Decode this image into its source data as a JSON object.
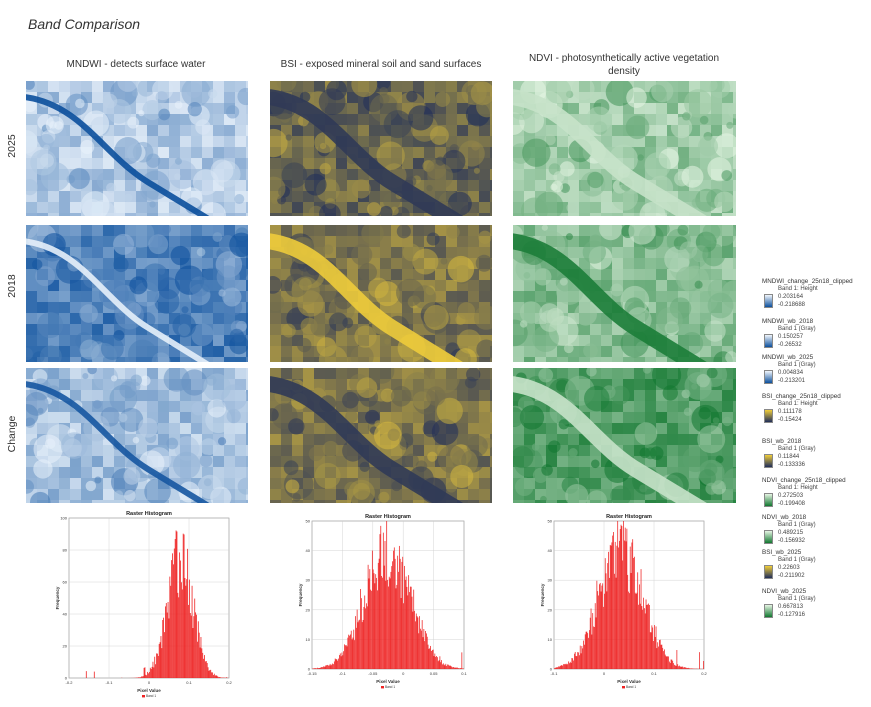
{
  "title": "Band Comparison",
  "columns": [
    {
      "label": "MNDWI - detects surface water"
    },
    {
      "label": "BSI - exposed mineral soil and sand surfaces"
    },
    {
      "label": "NDVI - photosynthetically active vegetation density"
    }
  ],
  "rows": [
    {
      "label": "2025"
    },
    {
      "label": "2018"
    },
    {
      "label": "Change"
    }
  ],
  "colors": {
    "mndwi_low": "#0b4f9c",
    "mndwi_high": "#e9f2fb",
    "bsi_low": "#1f2d5a",
    "bsi_high": "#f2cf3a",
    "ndvi_low": "#11772f",
    "ndvi_high": "#e6f5e4",
    "hist_series": "#ee2222"
  },
  "histograms": [
    {
      "title": "Raster Histogram",
      "xlabel": "Pixel Value",
      "ylabel": "Frequency",
      "legend": "Band 1",
      "yticks": [
        "0",
        "20",
        "40",
        "60",
        "80",
        "100"
      ],
      "xticks": [
        "-0.2",
        "-0.1",
        "0",
        "0.1",
        "0.2"
      ]
    },
    {
      "title": "Raster Histogram",
      "xlabel": "Pixel Value",
      "ylabel": "Frequency",
      "legend": "Band 1",
      "yticks": [
        "0",
        "10",
        "20",
        "30",
        "40",
        "50"
      ],
      "xticks": [
        "-0.15",
        "-0.1",
        "-0.05",
        "0",
        "0.05",
        "0.1"
      ]
    },
    {
      "title": "Raster Histogram",
      "xlabel": "Pixel Value",
      "ylabel": "Frequency",
      "legend": "Band 1",
      "yticks": [
        "0",
        "10",
        "20",
        "30",
        "40",
        "50"
      ],
      "xticks": [
        "-0.1",
        "0",
        "0.1",
        "0.2"
      ]
    }
  ],
  "legend": [
    {
      "name": "MNDWI_change_25n18_clipped",
      "band": "Band 1: Height",
      "max": "0.203164",
      "min": "-0.218688",
      "ramp": [
        "#f2f7fd",
        "#0b4f9c"
      ]
    },
    {
      "name": "MNDWI_wb_2018",
      "band": "Band 1 (Gray)",
      "max": "0.150257",
      "min": "-0.26532",
      "ramp": [
        "#f2f7fd",
        "#0b4f9c"
      ]
    },
    {
      "name": "MNDWI_wb_2025",
      "band": "Band 1 (Gray)",
      "max": "0.004834",
      "min": "-0.213201",
      "ramp": [
        "#f2f7fd",
        "#0b4f9c"
      ]
    },
    {
      "name": "BSI_change_25n18_clipped",
      "band": "Band 1: Height",
      "max": "0.111178",
      "min": "-0.15424",
      "ramp": [
        "#f2cf3a",
        "#1f2d5a"
      ]
    },
    {
      "name": "BSI_wb_2018",
      "band": "Band 1 (Gray)",
      "max": "0.11844",
      "min": "-0.133336",
      "ramp": [
        "#f2cf3a",
        "#1f2d5a"
      ]
    },
    {
      "name": "NDVI_change_25n18_clipped",
      "band": "Band 1: Height",
      "max": "0.272503",
      "min": "-0.199408",
      "ramp": [
        "#e6f5e4",
        "#11772f"
      ]
    },
    {
      "name": "NDVI_wb_2018",
      "band": "Band 1 (Gray)",
      "max": "0.489215",
      "min": "-0.156932",
      "ramp": [
        "#e6f5e4",
        "#11772f"
      ]
    },
    {
      "name": "BSI_wb_2025",
      "band": "Band 1 (Gray)",
      "max": "0.22603",
      "min": "-0.211902",
      "ramp": [
        "#f2cf3a",
        "#1f2d5a"
      ]
    },
    {
      "name": "NDVI_wb_2025",
      "band": "Band 1 (Gray)",
      "max": "0.667813",
      "min": "-0.127916",
      "ramp": [
        "#e6f5e4",
        "#11772f"
      ]
    }
  ],
  "chart_data": [
    {
      "type": "bar",
      "title": "Raster Histogram",
      "xlabel": "Pixel Value",
      "ylabel": "Frequency",
      "xlim": [
        -0.2,
        0.2
      ],
      "ylim": [
        0,
        100
      ],
      "series_name": "Band 1",
      "distribution": {
        "center": 0.078,
        "spread": 0.032,
        "peak": 78
      }
    },
    {
      "type": "bar",
      "title": "Raster Histogram",
      "xlabel": "Pixel Value",
      "ylabel": "Frequency",
      "xlim": [
        -0.16,
        0.12
      ],
      "ylim": [
        0,
        52
      ],
      "series_name": "Band 1",
      "distribution": {
        "center": -0.02,
        "spread": 0.042,
        "peak": 43
      }
    },
    {
      "type": "bar",
      "title": "Raster Histogram",
      "xlabel": "Pixel Value",
      "ylabel": "Frequency",
      "xlim": [
        -0.15,
        0.3
      ],
      "ylim": [
        0,
        52
      ],
      "series_name": "Band 1",
      "distribution": {
        "center": 0.05,
        "spread": 0.065,
        "peak": 44
      }
    }
  ]
}
